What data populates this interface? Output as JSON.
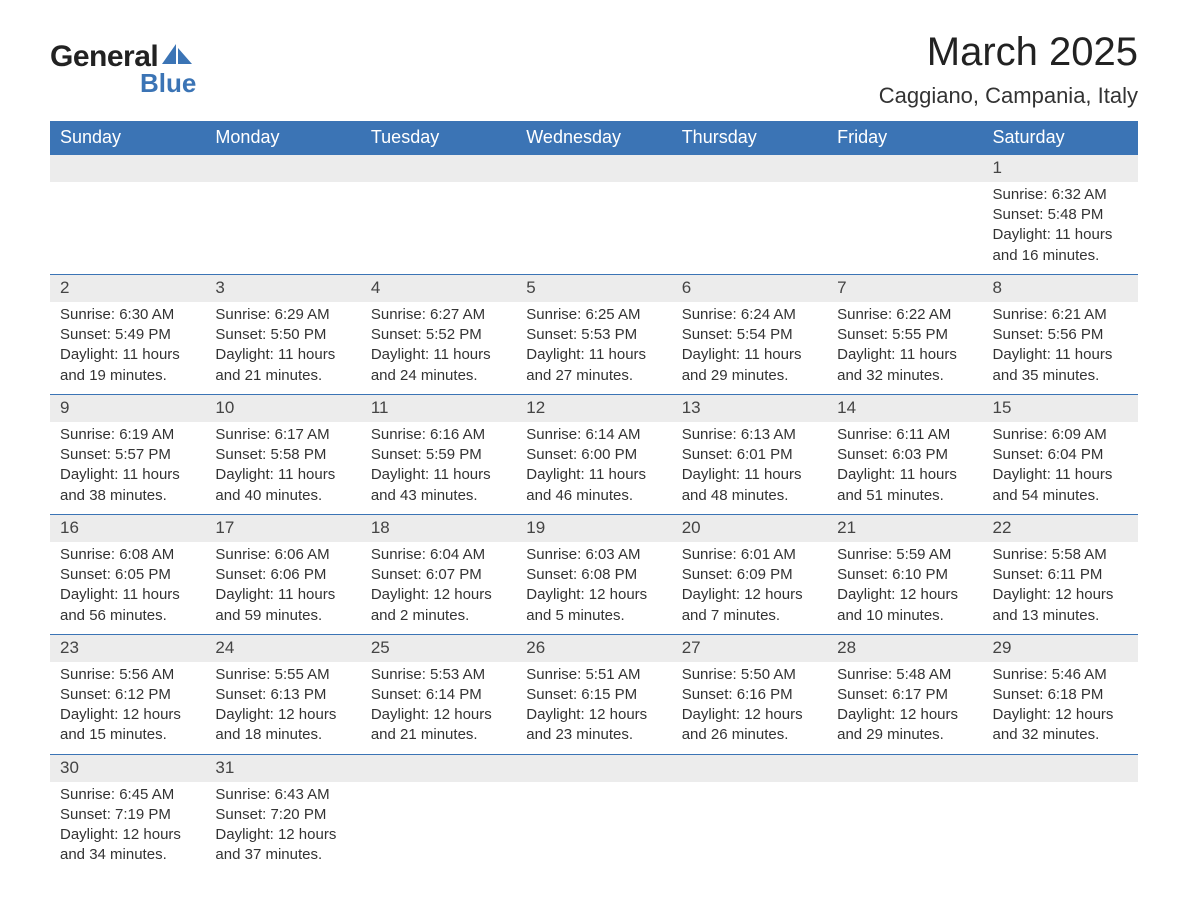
{
  "brand": {
    "word1": "General",
    "word2": "Blue",
    "word1_color": "#222222",
    "word2_color": "#3b74b5"
  },
  "title": "March 2025",
  "location": "Caggiano, Campania, Italy",
  "header_bg": "#3b74b5",
  "header_text_color": "#ffffff",
  "daynum_bg": "#ececec",
  "row_border_color": "#3b74b5",
  "text_color": "#333333",
  "page_bg": "#ffffff",
  "title_fontsize": 40,
  "location_fontsize": 22,
  "header_fontsize": 18,
  "body_fontsize": 15,
  "columns": [
    "Sunday",
    "Monday",
    "Tuesday",
    "Wednesday",
    "Thursday",
    "Friday",
    "Saturday"
  ],
  "weeks": [
    [
      null,
      null,
      null,
      null,
      null,
      null,
      {
        "n": "1",
        "sunrise": "Sunrise: 6:32 AM",
        "sunset": "Sunset: 5:48 PM",
        "day1": "Daylight: 11 hours",
        "day2": "and 16 minutes."
      }
    ],
    [
      {
        "n": "2",
        "sunrise": "Sunrise: 6:30 AM",
        "sunset": "Sunset: 5:49 PM",
        "day1": "Daylight: 11 hours",
        "day2": "and 19 minutes."
      },
      {
        "n": "3",
        "sunrise": "Sunrise: 6:29 AM",
        "sunset": "Sunset: 5:50 PM",
        "day1": "Daylight: 11 hours",
        "day2": "and 21 minutes."
      },
      {
        "n": "4",
        "sunrise": "Sunrise: 6:27 AM",
        "sunset": "Sunset: 5:52 PM",
        "day1": "Daylight: 11 hours",
        "day2": "and 24 minutes."
      },
      {
        "n": "5",
        "sunrise": "Sunrise: 6:25 AM",
        "sunset": "Sunset: 5:53 PM",
        "day1": "Daylight: 11 hours",
        "day2": "and 27 minutes."
      },
      {
        "n": "6",
        "sunrise": "Sunrise: 6:24 AM",
        "sunset": "Sunset: 5:54 PM",
        "day1": "Daylight: 11 hours",
        "day2": "and 29 minutes."
      },
      {
        "n": "7",
        "sunrise": "Sunrise: 6:22 AM",
        "sunset": "Sunset: 5:55 PM",
        "day1": "Daylight: 11 hours",
        "day2": "and 32 minutes."
      },
      {
        "n": "8",
        "sunrise": "Sunrise: 6:21 AM",
        "sunset": "Sunset: 5:56 PM",
        "day1": "Daylight: 11 hours",
        "day2": "and 35 minutes."
      }
    ],
    [
      {
        "n": "9",
        "sunrise": "Sunrise: 6:19 AM",
        "sunset": "Sunset: 5:57 PM",
        "day1": "Daylight: 11 hours",
        "day2": "and 38 minutes."
      },
      {
        "n": "10",
        "sunrise": "Sunrise: 6:17 AM",
        "sunset": "Sunset: 5:58 PM",
        "day1": "Daylight: 11 hours",
        "day2": "and 40 minutes."
      },
      {
        "n": "11",
        "sunrise": "Sunrise: 6:16 AM",
        "sunset": "Sunset: 5:59 PM",
        "day1": "Daylight: 11 hours",
        "day2": "and 43 minutes."
      },
      {
        "n": "12",
        "sunrise": "Sunrise: 6:14 AM",
        "sunset": "Sunset: 6:00 PM",
        "day1": "Daylight: 11 hours",
        "day2": "and 46 minutes."
      },
      {
        "n": "13",
        "sunrise": "Sunrise: 6:13 AM",
        "sunset": "Sunset: 6:01 PM",
        "day1": "Daylight: 11 hours",
        "day2": "and 48 minutes."
      },
      {
        "n": "14",
        "sunrise": "Sunrise: 6:11 AM",
        "sunset": "Sunset: 6:03 PM",
        "day1": "Daylight: 11 hours",
        "day2": "and 51 minutes."
      },
      {
        "n": "15",
        "sunrise": "Sunrise: 6:09 AM",
        "sunset": "Sunset: 6:04 PM",
        "day1": "Daylight: 11 hours",
        "day2": "and 54 minutes."
      }
    ],
    [
      {
        "n": "16",
        "sunrise": "Sunrise: 6:08 AM",
        "sunset": "Sunset: 6:05 PM",
        "day1": "Daylight: 11 hours",
        "day2": "and 56 minutes."
      },
      {
        "n": "17",
        "sunrise": "Sunrise: 6:06 AM",
        "sunset": "Sunset: 6:06 PM",
        "day1": "Daylight: 11 hours",
        "day2": "and 59 minutes."
      },
      {
        "n": "18",
        "sunrise": "Sunrise: 6:04 AM",
        "sunset": "Sunset: 6:07 PM",
        "day1": "Daylight: 12 hours",
        "day2": "and 2 minutes."
      },
      {
        "n": "19",
        "sunrise": "Sunrise: 6:03 AM",
        "sunset": "Sunset: 6:08 PM",
        "day1": "Daylight: 12 hours",
        "day2": "and 5 minutes."
      },
      {
        "n": "20",
        "sunrise": "Sunrise: 6:01 AM",
        "sunset": "Sunset: 6:09 PM",
        "day1": "Daylight: 12 hours",
        "day2": "and 7 minutes."
      },
      {
        "n": "21",
        "sunrise": "Sunrise: 5:59 AM",
        "sunset": "Sunset: 6:10 PM",
        "day1": "Daylight: 12 hours",
        "day2": "and 10 minutes."
      },
      {
        "n": "22",
        "sunrise": "Sunrise: 5:58 AM",
        "sunset": "Sunset: 6:11 PM",
        "day1": "Daylight: 12 hours",
        "day2": "and 13 minutes."
      }
    ],
    [
      {
        "n": "23",
        "sunrise": "Sunrise: 5:56 AM",
        "sunset": "Sunset: 6:12 PM",
        "day1": "Daylight: 12 hours",
        "day2": "and 15 minutes."
      },
      {
        "n": "24",
        "sunrise": "Sunrise: 5:55 AM",
        "sunset": "Sunset: 6:13 PM",
        "day1": "Daylight: 12 hours",
        "day2": "and 18 minutes."
      },
      {
        "n": "25",
        "sunrise": "Sunrise: 5:53 AM",
        "sunset": "Sunset: 6:14 PM",
        "day1": "Daylight: 12 hours",
        "day2": "and 21 minutes."
      },
      {
        "n": "26",
        "sunrise": "Sunrise: 5:51 AM",
        "sunset": "Sunset: 6:15 PM",
        "day1": "Daylight: 12 hours",
        "day2": "and 23 minutes."
      },
      {
        "n": "27",
        "sunrise": "Sunrise: 5:50 AM",
        "sunset": "Sunset: 6:16 PM",
        "day1": "Daylight: 12 hours",
        "day2": "and 26 minutes."
      },
      {
        "n": "28",
        "sunrise": "Sunrise: 5:48 AM",
        "sunset": "Sunset: 6:17 PM",
        "day1": "Daylight: 12 hours",
        "day2": "and 29 minutes."
      },
      {
        "n": "29",
        "sunrise": "Sunrise: 5:46 AM",
        "sunset": "Sunset: 6:18 PM",
        "day1": "Daylight: 12 hours",
        "day2": "and 32 minutes."
      }
    ],
    [
      {
        "n": "30",
        "sunrise": "Sunrise: 6:45 AM",
        "sunset": "Sunset: 7:19 PM",
        "day1": "Daylight: 12 hours",
        "day2": "and 34 minutes."
      },
      {
        "n": "31",
        "sunrise": "Sunrise: 6:43 AM",
        "sunset": "Sunset: 7:20 PM",
        "day1": "Daylight: 12 hours",
        "day2": "and 37 minutes."
      },
      null,
      null,
      null,
      null,
      null
    ]
  ]
}
